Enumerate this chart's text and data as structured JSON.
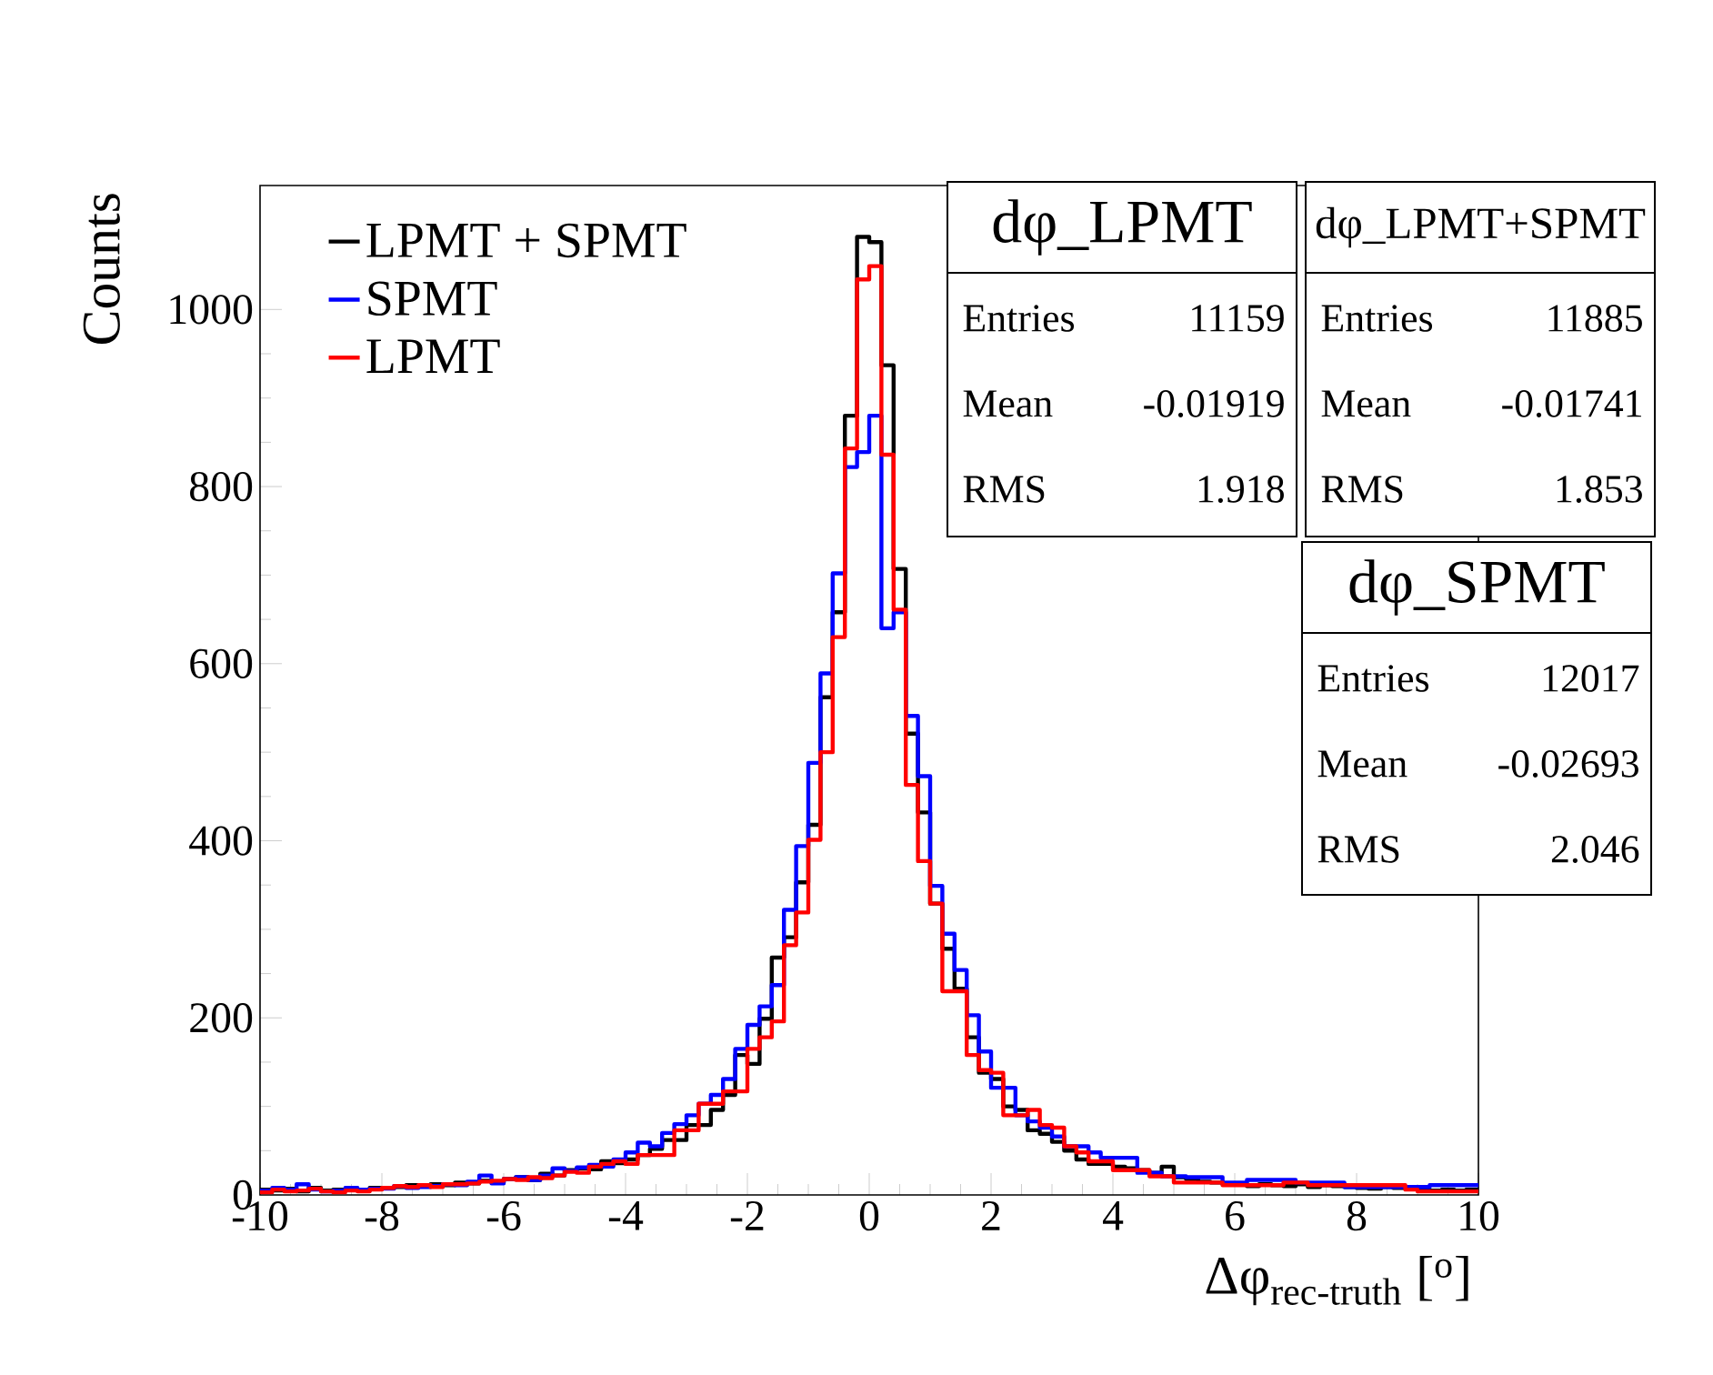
{
  "chart_data": {
    "type": "histogram",
    "xlabel": "Δφ$_{rec-truth}$ [$^{o}$]",
    "ylabel": "Counts",
    "bins": [
      -10,
      -9.8,
      -9.6,
      -9.4,
      -9.2,
      -9,
      -8.8,
      -8.6,
      -8.4,
      -8.2,
      -8,
      -7.8,
      -7.6,
      -7.4,
      -7.2,
      -7,
      -6.8,
      -6.6,
      -6.4,
      -6.2,
      -6,
      -5.8,
      -5.6,
      -5.4,
      -5.2,
      -5,
      -4.8,
      -4.6,
      -4.4,
      -4.2,
      -4,
      -3.8,
      -3.6,
      -3.4,
      -3.2,
      -3,
      -2.8,
      -2.6,
      -2.4,
      -2.2,
      -2,
      -1.8,
      -1.6,
      -1.4,
      -1.2,
      -1,
      -0.8,
      -0.6,
      -0.4,
      -0.2,
      0,
      0.2,
      0.4,
      0.6,
      0.8,
      1,
      1.2,
      1.4,
      1.6,
      1.8,
      2,
      2.2,
      2.4,
      2.6,
      2.8,
      3,
      3.2,
      3.4,
      3.6,
      3.8,
      4,
      4.2,
      4.4,
      4.6,
      4.8,
      5,
      5.2,
      5.4,
      5.6,
      5.8,
      6,
      6.2,
      6.4,
      6.6,
      6.8,
      7,
      7.2,
      7.4,
      7.6,
      7.8,
      8,
      8.2,
      8.4,
      8.6,
      8.8,
      9,
      9.2,
      9.4,
      9.6,
      9.8,
      10
    ],
    "series": [
      {
        "name": "LPMT + SPMT",
        "color": "#000000",
        "values": [
          6,
          5,
          7,
          4,
          8,
          5,
          6,
          7,
          5,
          8,
          8,
          9,
          11,
          10,
          12,
          11,
          14,
          13,
          16,
          14,
          18,
          20,
          17,
          24,
          22,
          28,
          30,
          29,
          38,
          36,
          40,
          45,
          52,
          62,
          62,
          79,
          79,
          96,
          113,
          158,
          148,
          199,
          268,
          291,
          353,
          418,
          562,
          658,
          880,
          1082,
          1076,
          937,
          707,
          521,
          432,
          329,
          278,
          233,
          178,
          138,
          131,
          100,
          96,
          73,
          69,
          60,
          50,
          40,
          35,
          35,
          32,
          30,
          28,
          25,
          32,
          20,
          18,
          15,
          14,
          12,
          13,
          10,
          12,
          11,
          10,
          12,
          9,
          11,
          10,
          9,
          8,
          7,
          9,
          8,
          7,
          6,
          5,
          6,
          5,
          6
        ]
      },
      {
        "name": "SPMT",
        "color": "#0000ff",
        "values": [
          5,
          8,
          6,
          12,
          6,
          4,
          5,
          8,
          6,
          7,
          7,
          10,
          8,
          9,
          10,
          12,
          11,
          15,
          22,
          13,
          18,
          20,
          17,
          22,
          30,
          27,
          31,
          34,
          32,
          40,
          48,
          59,
          55,
          70,
          80,
          90,
          103,
          113,
          131,
          165,
          192,
          213,
          237,
          322,
          394,
          488,
          589,
          702,
          822,
          839,
          880,
          640,
          658,
          541,
          473,
          349,
          295,
          254,
          203,
          162,
          121,
          121,
          90,
          83,
          76,
          66,
          55,
          55,
          48,
          42,
          42,
          42,
          25,
          25,
          21,
          21,
          20,
          20,
          20,
          14,
          14,
          17,
          17,
          17,
          17,
          14,
          14,
          14,
          14,
          9,
          9,
          9,
          9,
          9,
          9,
          9,
          11,
          11,
          11,
          11
        ]
      },
      {
        "name": "LPMT",
        "color": "#ff0000",
        "values": [
          3,
          6,
          4,
          5,
          7,
          4,
          3,
          5,
          4,
          6,
          8,
          10,
          9,
          11,
          9,
          12,
          12,
          13,
          15,
          16,
          18,
          17,
          20,
          19,
          22,
          26,
          25,
          32,
          35,
          38,
          35,
          45,
          45,
          45,
          73,
          73,
          103,
          103,
          117,
          117,
          165,
          178,
          196,
          282,
          319,
          401,
          500,
          630,
          843,
          1034,
          1049,
          836,
          661,
          463,
          377,
          329,
          230,
          230,
          158,
          141,
          138,
          90,
          90,
          96,
          79,
          76,
          55,
          48,
          38,
          38,
          28,
          28,
          28,
          21,
          21,
          14,
          14,
          14,
          14,
          11,
          11,
          11,
          11,
          11,
          14,
          14,
          11,
          11,
          11,
          11,
          11,
          11,
          11,
          11,
          6,
          4,
          4,
          4,
          4,
          4
        ]
      }
    ],
    "xlim": [
      -10,
      10
    ],
    "ylim": [
      0,
      1140
    ],
    "xticks": [
      -10,
      -8,
      -6,
      -4,
      -2,
      0,
      2,
      4,
      6,
      8,
      10
    ],
    "yticks": [
      0,
      200,
      400,
      600,
      800,
      1000
    ],
    "legend": "top left",
    "annotations": [
      "dφ_LPMT",
      "Entries",
      "11159",
      "Mean",
      "-0.01919",
      "RMS",
      "1.918",
      "dφ_LPMT+SPMT",
      "Entries",
      "11885",
      "Mean",
      "-0.01741",
      "RMS",
      "1.853",
      "dφ_SPMT",
      "Entries",
      "12017",
      "Mean",
      "-0.02693",
      "RMS",
      "2.046"
    ]
  }
}
